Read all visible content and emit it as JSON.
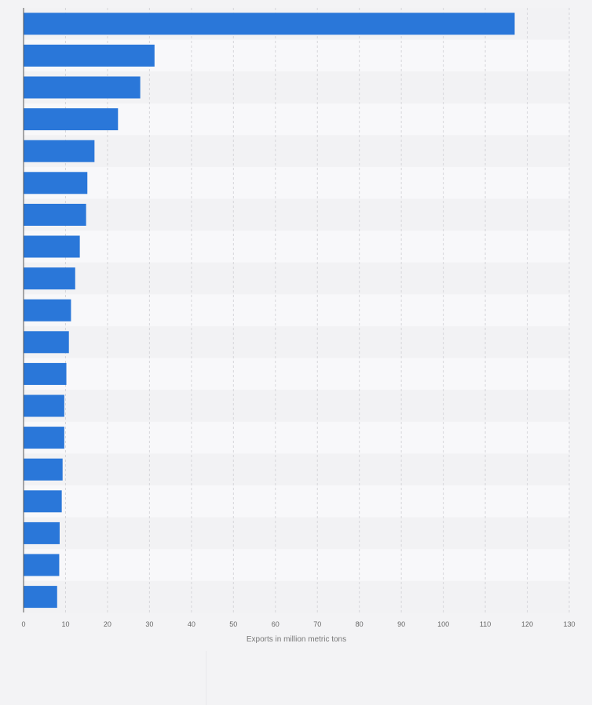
{
  "colors": {
    "bar": "#2a77d9",
    "stripe_light": "#f8f8fa",
    "stripe_dark": "#f2f2f4",
    "grid": "#d6d6da",
    "axis": "#555555"
  },
  "chart_data": {
    "type": "bar",
    "orientation": "horizontal",
    "title": "",
    "xlabel": "Exports in million metric tons",
    "ylabel": "",
    "xlim": [
      0,
      130
    ],
    "x_ticks": [
      0,
      10,
      20,
      30,
      40,
      50,
      60,
      70,
      80,
      90,
      100,
      110,
      120,
      130
    ],
    "grid": true,
    "categories": [
      "",
      "",
      "",
      "",
      "",
      "",
      "",
      "",
      "",
      "",
      "",
      "",
      "",
      "",
      "",
      "",
      "",
      "",
      ""
    ],
    "values": [
      117,
      31.2,
      27.8,
      22.5,
      16.9,
      15.2,
      14.9,
      13.4,
      12.3,
      11.3,
      10.8,
      10.2,
      9.7,
      9.7,
      9.3,
      9.1,
      8.6,
      8.5,
      8.0
    ]
  }
}
